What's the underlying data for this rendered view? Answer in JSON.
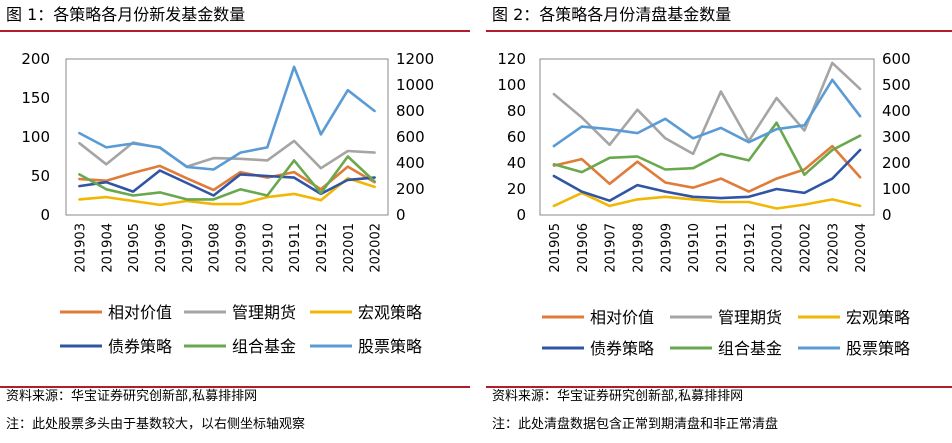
{
  "legend_labels": [
    "相对价值",
    "管理期货",
    "宏观策略",
    "债券策略",
    "组合基金",
    "股票策略"
  ],
  "colors": {
    "相对价值": "#E07B39",
    "管理期货": "#A5A5A5",
    "宏观策略": "#F2B705",
    "债券策略": "#2F55A4",
    "组合基金": "#6AA84F",
    "股票策略": "#5B9BD5",
    "rule": "#b11d2a",
    "axis": "#888888",
    "text": "#000000"
  },
  "chart_data": [
    {
      "id": "fig1",
      "type": "line",
      "title": "图 1：各策略各月份新发基金数量",
      "categories": [
        "201903",
        "201904",
        "201905",
        "201906",
        "201907",
        "201908",
        "201909",
        "201910",
        "201911",
        "201912",
        "202001",
        "202002"
      ],
      "y_left": {
        "min": 0,
        "max": 200,
        "step": 50
      },
      "y_right": {
        "min": 0,
        "max": 1200,
        "step": 200
      },
      "grid": false,
      "legend_position": "bottom",
      "series": [
        {
          "name": "相对价值",
          "axis": "left",
          "values": [
            46,
            44,
            54,
            63,
            47,
            32,
            55,
            48,
            55,
            33,
            62,
            42
          ]
        },
        {
          "name": "管理期货",
          "axis": "left",
          "values": [
            92,
            65,
            93,
            86,
            62,
            73,
            72,
            70,
            95,
            60,
            82,
            80
          ]
        },
        {
          "name": "宏观策略",
          "axis": "left",
          "values": [
            20,
            23,
            18,
            13,
            18,
            14,
            14,
            23,
            27,
            19,
            47,
            36
          ]
        },
        {
          "name": "债券策略",
          "axis": "left",
          "values": [
            37,
            42,
            30,
            57,
            41,
            25,
            52,
            50,
            48,
            27,
            45,
            48
          ]
        },
        {
          "name": "组合基金",
          "axis": "left",
          "values": [
            52,
            33,
            25,
            29,
            20,
            20,
            33,
            25,
            70,
            28,
            75,
            43
          ]
        },
        {
          "name": "股票策略",
          "axis": "right",
          "values": [
            630,
            520,
            550,
            520,
            370,
            350,
            480,
            520,
            1140,
            620,
            960,
            800
          ]
        }
      ],
      "notes": [
        "资料来源：华宝证券研究创新部,私募排排网",
        "注：此处股票多头由于基数较大，以右侧坐标轴观察"
      ]
    },
    {
      "id": "fig2",
      "type": "line",
      "title": "图 2：各策略各月份清盘基金数量",
      "categories": [
        "201905",
        "201906",
        "201907",
        "201908",
        "201909",
        "201910",
        "201911",
        "201912",
        "202001",
        "202002",
        "202003",
        "202004"
      ],
      "y_left": {
        "min": 0,
        "max": 120,
        "step": 20
      },
      "y_right": {
        "min": 0,
        "max": 600,
        "step": 100
      },
      "grid": false,
      "legend_position": "bottom",
      "series": [
        {
          "name": "相对价值",
          "axis": "left",
          "values": [
            38,
            43,
            24,
            41,
            25,
            21,
            28,
            18,
            28,
            35,
            53,
            29
          ]
        },
        {
          "name": "管理期货",
          "axis": "left",
          "values": [
            93,
            75,
            54,
            81,
            59,
            47,
            95,
            57,
            90,
            65,
            117,
            97
          ]
        },
        {
          "name": "宏观策略",
          "axis": "left",
          "values": [
            7,
            17,
            7,
            12,
            14,
            12,
            10,
            10,
            5,
            8,
            12,
            7
          ]
        },
        {
          "name": "债券策略",
          "axis": "left",
          "values": [
            30,
            18,
            11,
            23,
            18,
            14,
            13,
            14,
            20,
            17,
            28,
            50
          ]
        },
        {
          "name": "组合基金",
          "axis": "left",
          "values": [
            39,
            33,
            44,
            45,
            35,
            36,
            47,
            42,
            71,
            31,
            50,
            61
          ]
        },
        {
          "name": "股票策略",
          "axis": "right",
          "values": [
            265,
            340,
            330,
            315,
            370,
            295,
            335,
            280,
            330,
            345,
            520,
            380
          ]
        }
      ],
      "notes": [
        "资料来源：华宝证券研究创新部,私募排排网",
        "注：此处清盘数据包含正常到期清盘和非正常清盘"
      ]
    }
  ]
}
